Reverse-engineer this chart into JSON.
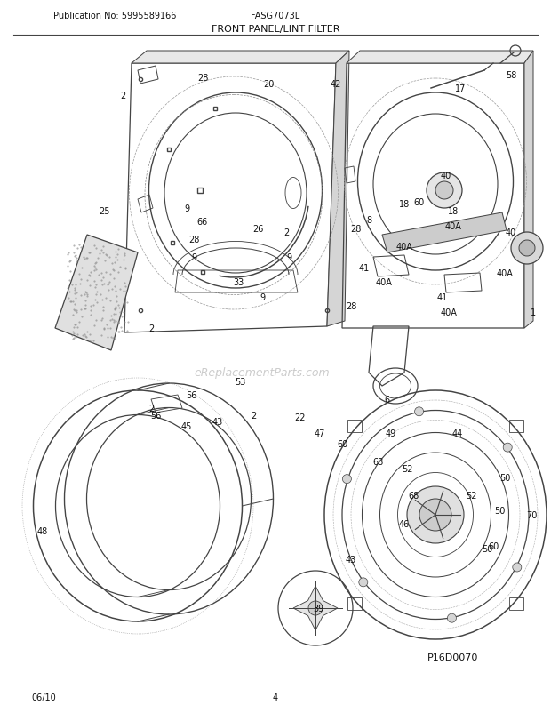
{
  "title": "FRONT PANEL/LINT FILTER",
  "pub_no": "Publication No: 5995589166",
  "model": "FASG7073L",
  "date": "06/10",
  "page": "4",
  "watermark": "eReplacementParts.com",
  "part_code": "P16D0070",
  "bg_color": "#ffffff",
  "lc": "#444444",
  "tc": "#333333",
  "fig_width": 6.2,
  "fig_height": 8.03,
  "dpi": 100
}
